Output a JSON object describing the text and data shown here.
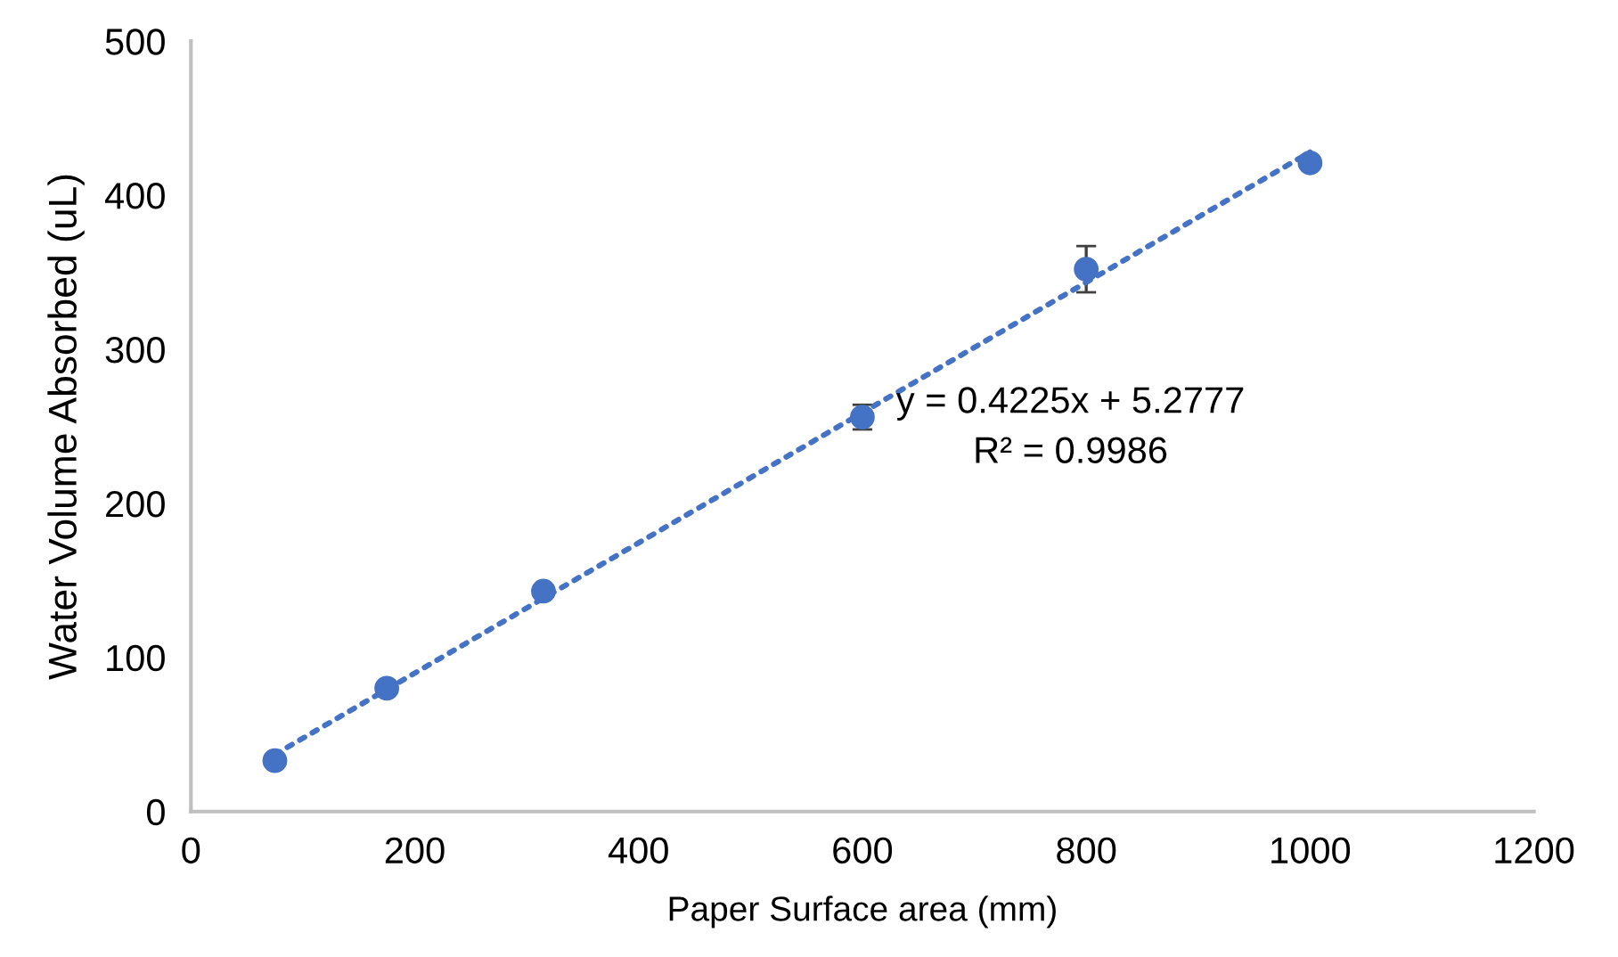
{
  "chart_data": {
    "type": "scatter",
    "xlabel": "Paper Surface area (mm)",
    "ylabel": "Water Volume Absorbed (uL)",
    "xlim": [
      0,
      1200
    ],
    "xticks": [
      0,
      200,
      400,
      600,
      800,
      1000,
      1200
    ],
    "ylim": [
      0,
      500
    ],
    "yticks": [
      0,
      100,
      200,
      300,
      400,
      500
    ],
    "grid": false,
    "legend": false,
    "series": [
      {
        "marker": "circle",
        "color": "#4472c4",
        "x": [
          75,
          175,
          315,
          600,
          800,
          1000
        ],
        "values": [
          33,
          80,
          143,
          256,
          352,
          421
        ],
        "errors": [
          null,
          null,
          null,
          8,
          15,
          null
        ]
      },
      {
        "type": "line",
        "marker": "none",
        "color": "#4472c4",
        "line_style": "dotted",
        "x": [
          75,
          1000
        ],
        "values": [
          37,
          428
        ]
      }
    ],
    "annotations": [
      "y = 0.4225x + 5.2777",
      "R² = 0.9986"
    ]
  }
}
